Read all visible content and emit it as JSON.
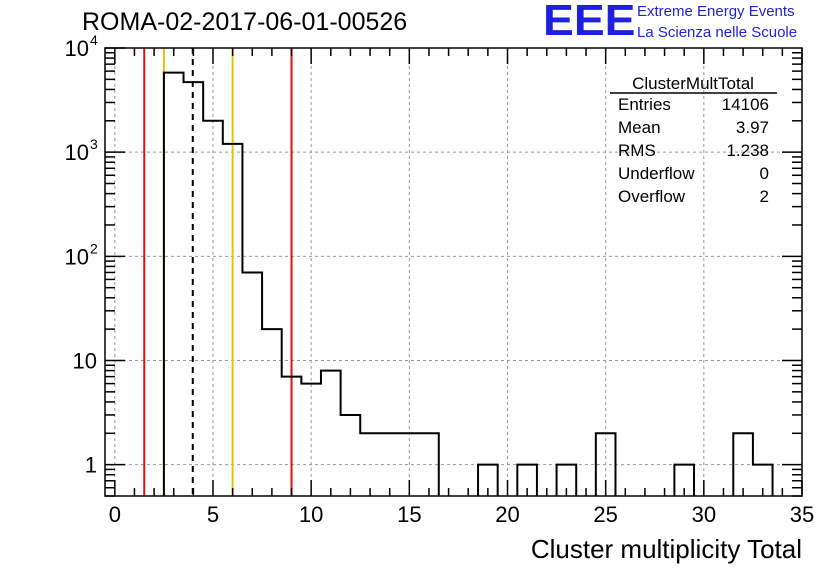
{
  "title": "ROMA-02-2017-06-01-00526",
  "logo": {
    "mark": "EEE",
    "line1": "Extreme Energy Events",
    "line2": "La Scienza nelle Scuole"
  },
  "colors": {
    "histogram": "#000000",
    "red_line": "#e01010",
    "yellow_line": "#f0c000",
    "grid": "#9a9a9a",
    "logo": "#1f1fe0"
  },
  "stats": {
    "name": "ClusterMultTotal",
    "rows": [
      {
        "label": "Entries",
        "value": "14106"
      },
      {
        "label": "Mean",
        "value": "3.97"
      },
      {
        "label": "RMS",
        "value": "1.238"
      },
      {
        "label": "Underflow",
        "value": "0"
      },
      {
        "label": "Overflow",
        "value": "2"
      }
    ]
  },
  "chart_data": {
    "type": "histogram",
    "title": "ROMA-02-2017-06-01-00526",
    "xlabel": "Cluster multiplicity Total",
    "ylabel": "",
    "y_scale": "log",
    "xlim": [
      -0.5,
      35
    ],
    "ylim": [
      0.5,
      10000
    ],
    "grid": true,
    "x_ticks": [
      {
        "value": 0,
        "label": "0"
      },
      {
        "value": 5,
        "label": "5"
      },
      {
        "value": 10,
        "label": "10"
      },
      {
        "value": 15,
        "label": "15"
      },
      {
        "value": 20,
        "label": "20"
      },
      {
        "value": 25,
        "label": "25"
      },
      {
        "value": 30,
        "label": "30"
      },
      {
        "value": 35,
        "label": "35"
      }
    ],
    "y_ticks": [
      {
        "value": 1,
        "base": "1",
        "exp": ""
      },
      {
        "value": 10,
        "base": "10",
        "exp": ""
      },
      {
        "value": 100,
        "base": "10",
        "exp": "2"
      },
      {
        "value": 1000,
        "base": "10",
        "exp": "3"
      },
      {
        "value": 10000,
        "base": "10",
        "exp": "4"
      }
    ],
    "bins": [
      {
        "x0": 2.5,
        "x1": 3.5,
        "count": 5800
      },
      {
        "x0": 3.5,
        "x1": 4.5,
        "count": 4700
      },
      {
        "x0": 4.5,
        "x1": 5.5,
        "count": 2000
      },
      {
        "x0": 5.5,
        "x1": 6.5,
        "count": 1200
      },
      {
        "x0": 6.5,
        "x1": 7.5,
        "count": 70
      },
      {
        "x0": 7.5,
        "x1": 8.5,
        "count": 20
      },
      {
        "x0": 8.5,
        "x1": 9.5,
        "count": 7
      },
      {
        "x0": 9.5,
        "x1": 10.5,
        "count": 6
      },
      {
        "x0": 10.5,
        "x1": 11.5,
        "count": 8
      },
      {
        "x0": 11.5,
        "x1": 12.5,
        "count": 3
      },
      {
        "x0": 12.5,
        "x1": 16.5,
        "count": 2
      },
      {
        "x0": 18.5,
        "x1": 19.5,
        "count": 1
      },
      {
        "x0": 20.5,
        "x1": 21.5,
        "count": 1
      },
      {
        "x0": 22.5,
        "x1": 23.5,
        "count": 1
      },
      {
        "x0": 24.5,
        "x1": 25.5,
        "count": 2
      },
      {
        "x0": 28.5,
        "x1": 29.5,
        "count": 1
      },
      {
        "x0": 31.5,
        "x1": 32.5,
        "count": 2
      },
      {
        "x0": 32.5,
        "x1": 33.5,
        "count": 1
      }
    ],
    "vertical_lines": [
      {
        "x": 1.5,
        "color": "red",
        "style": "solid"
      },
      {
        "x": 2.5,
        "color": "yellow",
        "style": "solid"
      },
      {
        "x": 3.97,
        "color": "black",
        "style": "dashed"
      },
      {
        "x": 6.0,
        "color": "yellow",
        "style": "solid"
      },
      {
        "x": 9.0,
        "color": "red",
        "style": "solid"
      }
    ]
  }
}
